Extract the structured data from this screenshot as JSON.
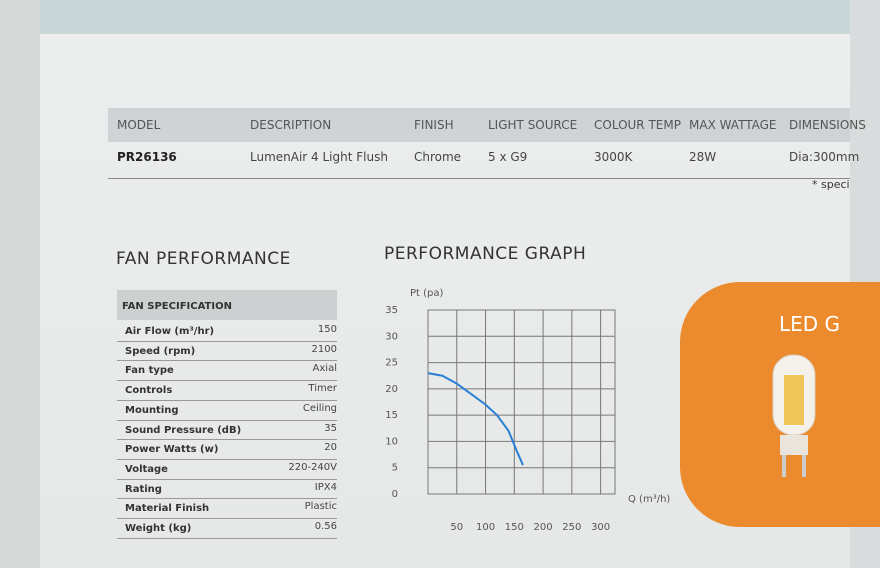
{
  "product_table": {
    "headers": [
      "MODEL",
      "DESCRIPTION",
      "FINISH",
      "LIGHT SOURCE",
      "COLOUR TEMP",
      "MAX WATTAGE",
      "DIMENSIONS"
    ],
    "row": [
      "PR26136",
      "LumenAir 4 Light Flush",
      "Chrome",
      "5 x G9",
      "3000K",
      "28W",
      "Dia:300mm"
    ]
  },
  "footnote": "* speci",
  "fan_performance": {
    "title": "FAN PERFORMANCE",
    "table_title": "FAN SPECIFICATION",
    "rows": [
      [
        "Air Flow (m³/hr)",
        "150"
      ],
      [
        "Speed (rpm)",
        "2100"
      ],
      [
        "Fan type",
        "Axial"
      ],
      [
        "Controls",
        "Timer"
      ],
      [
        "Mounting",
        "Ceiling"
      ],
      [
        "Sound Pressure (dB)",
        "35"
      ],
      [
        "Power Watts (w)",
        "20"
      ],
      [
        "Voltage",
        "220-240V"
      ],
      [
        "Rating",
        "IPX4"
      ],
      [
        "Material Finish",
        "Plastic"
      ],
      [
        "Weight (kg)",
        "0.56"
      ]
    ]
  },
  "chart_data": {
    "type": "line",
    "title": "PERFORMANCE GRAPH",
    "y_label": "Pt (pa)",
    "x_label": "Q (m³/h)",
    "x": [
      0,
      25,
      50,
      75,
      100,
      120,
      140,
      155,
      165
    ],
    "series": [
      {
        "color": "#2a7fd4",
        "values": [
          23,
          22.5,
          21,
          19,
          17,
          15,
          12,
          8,
          5.5
        ]
      }
    ],
    "xlim": [
      0,
      325
    ],
    "ylim": [
      0,
      35
    ],
    "xticks": [
      50,
      100,
      150,
      200,
      250,
      300
    ],
    "yticks": [
      0,
      5,
      10,
      15,
      20,
      25,
      30,
      35
    ],
    "grid": true
  },
  "led_panel": {
    "title": "LED G"
  }
}
